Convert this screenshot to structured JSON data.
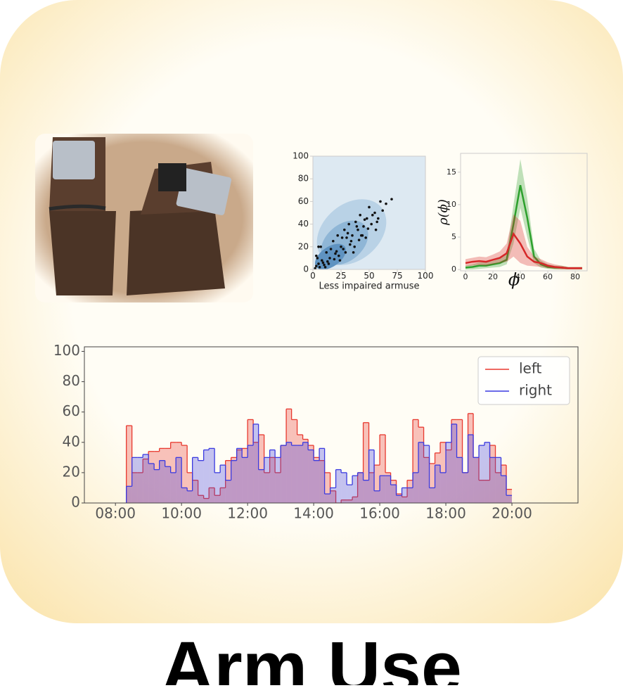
{
  "title": "Arm Use",
  "chart_data": [
    {
      "type": "scatter",
      "xlabel": "Less impaired armuse",
      "x": [
        2,
        3,
        5,
        4,
        6,
        8,
        10,
        12,
        3,
        7,
        9,
        15,
        18,
        20,
        22,
        25,
        24,
        28,
        30,
        27,
        32,
        35,
        33,
        38,
        40,
        36,
        42,
        45,
        44,
        48,
        50,
        52,
        47,
        55,
        58,
        60,
        56,
        62,
        65,
        70,
        5,
        14,
        16,
        19,
        23,
        26,
        29,
        31,
        34,
        37,
        39,
        41,
        43,
        46,
        49,
        53,
        57,
        11,
        13,
        21
      ],
      "values": [
        1,
        3,
        5,
        10,
        2,
        8,
        4,
        15,
        12,
        20,
        6,
        10,
        25,
        14,
        30,
        20,
        8,
        35,
        28,
        18,
        40,
        30,
        22,
        42,
        35,
        15,
        48,
        38,
        30,
        45,
        55,
        40,
        28,
        50,
        45,
        60,
        35,
        52,
        58,
        62,
        20,
        5,
        18,
        9,
        12,
        28,
        15,
        32,
        25,
        20,
        38,
        26,
        30,
        44,
        36,
        48,
        42,
        2,
        7,
        16
      ],
      "color": "#111111",
      "xlim": [
        0,
        100
      ],
      "ylim": [
        0,
        100
      ],
      "xticks": [
        0,
        25,
        50,
        75,
        100
      ],
      "yticks": [
        0,
        20,
        40,
        60,
        80,
        100
      ]
    },
    {
      "type": "line",
      "xlabel": "ϕ",
      "ylabel": "ρ(ϕ)",
      "x": [
        0,
        5,
        10,
        15,
        20,
        25,
        30,
        35,
        40,
        45,
        50,
        55,
        60,
        65,
        70,
        75,
        80,
        85
      ],
      "series": [
        {
          "color": "#2ca02c",
          "values": [
            0.3,
            0.4,
            0.6,
            0.6,
            0.8,
            1,
            1.5,
            7,
            13,
            8,
            2,
            0.8,
            0.4,
            0.3,
            0.3,
            0.2,
            0.2,
            0.2
          ],
          "band_lower": [
            0,
            0,
            0.1,
            0.2,
            0.3,
            0.4,
            0.8,
            4,
            9.5,
            5,
            1,
            0.3,
            0.1,
            0,
            0,
            0,
            0,
            0
          ],
          "band_upper": [
            0.6,
            0.8,
            1.1,
            1.1,
            1.3,
            1.7,
            2.5,
            10,
            17,
            11,
            3.2,
            1.4,
            0.8,
            0.6,
            0.6,
            0.4,
            0.4,
            0.4
          ]
        },
        {
          "color": "#d62728",
          "values": [
            1,
            1.2,
            1.3,
            1.2,
            1.5,
            1.8,
            2.5,
            5.5,
            4,
            2,
            1.2,
            1,
            0.6,
            0.4,
            0.3,
            0.2,
            0.2,
            0.2
          ],
          "band_lower": [
            0.5,
            0.6,
            0.7,
            0.6,
            0.8,
            1,
            1.2,
            2,
            1,
            0.6,
            0.5,
            0.4,
            0.2,
            0.1,
            0,
            0,
            0,
            0
          ],
          "band_upper": [
            1.6,
            1.8,
            2,
            1.9,
            2.3,
            2.8,
            4,
            8.5,
            7.5,
            3.5,
            2,
            1.6,
            1.1,
            0.8,
            0.6,
            0.4,
            0.4,
            0.4
          ]
        }
      ],
      "xlim": [
        -3.6,
        88.7
      ],
      "ylim": [
        -0.2,
        17.9
      ],
      "xticks": [
        0,
        20,
        40,
        60,
        80
      ],
      "yticks": [
        0,
        5,
        10,
        15
      ]
    },
    {
      "type": "histogram",
      "legend": "upper right",
      "bins": [
        8.33,
        8.5,
        8.67,
        8.83,
        9,
        9.17,
        9.33,
        9.5,
        9.67,
        9.83,
        10,
        10.17,
        10.33,
        10.5,
        10.67,
        10.83,
        11,
        11.17,
        11.33,
        11.5,
        11.67,
        11.83,
        12,
        12.17,
        12.33,
        12.5,
        12.67,
        12.83,
        13,
        13.17,
        13.33,
        13.5,
        13.67,
        13.83,
        14,
        14.17,
        14.33,
        14.5,
        14.67,
        14.83,
        15,
        15.17,
        15.33,
        15.5,
        15.67,
        15.83,
        16,
        16.17,
        16.33,
        16.5,
        16.67,
        16.83,
        17,
        17.17,
        17.33,
        17.5,
        17.67,
        17.83,
        18,
        18.17,
        18.33,
        18.5,
        18.67,
        18.83,
        19,
        19.17,
        19.33,
        19.5,
        19.67,
        19.83,
        20
      ],
      "series": [
        {
          "name": "left",
          "color": "#e8392f",
          "values": [
            51,
            20,
            20,
            29,
            34,
            34,
            36,
            36,
            40,
            40,
            38,
            20,
            15,
            5,
            3,
            10,
            5,
            10,
            28,
            30,
            35,
            36,
            55,
            40,
            45,
            20,
            30,
            20,
            38,
            62,
            55,
            45,
            42,
            38,
            30,
            28,
            20,
            8,
            0,
            2,
            2,
            4,
            20,
            53,
            20,
            25,
            45,
            20,
            15,
            6,
            4,
            15,
            55,
            50,
            30,
            26,
            33,
            40,
            35,
            55,
            55,
            20,
            59,
            30,
            15,
            15,
            38,
            20,
            25,
            9
          ]
        },
        {
          "name": "right",
          "color": "#3a3ae0",
          "values": [
            11,
            30,
            30,
            32,
            26,
            22,
            28,
            24,
            20,
            30,
            10,
            8,
            30,
            28,
            35,
            36,
            20,
            25,
            15,
            28,
            36,
            30,
            38,
            52,
            22,
            30,
            35,
            30,
            38,
            40,
            38,
            38,
            40,
            35,
            28,
            36,
            6,
            10,
            22,
            20,
            12,
            18,
            20,
            15,
            35,
            8,
            18,
            18,
            12,
            5,
            10,
            10,
            20,
            40,
            38,
            10,
            25,
            20,
            40,
            52,
            30,
            20,
            45,
            30,
            38,
            40,
            30,
            30,
            18,
            5
          ]
        }
      ],
      "xlim": [
        7.06,
        22
      ],
      "ylim": [
        0,
        103
      ],
      "xticks": [
        {
          "value": 8,
          "label": "08:00"
        },
        {
          "value": 10,
          "label": "10:00"
        },
        {
          "value": 12,
          "label": "12:00"
        },
        {
          "value": 14,
          "label": "14:00"
        },
        {
          "value": 16,
          "label": "16:00"
        },
        {
          "value": 18,
          "label": "18:00"
        },
        {
          "value": 20,
          "label": "20:00"
        }
      ],
      "yticks": [
        0,
        20,
        40,
        60,
        80,
        100
      ]
    }
  ]
}
